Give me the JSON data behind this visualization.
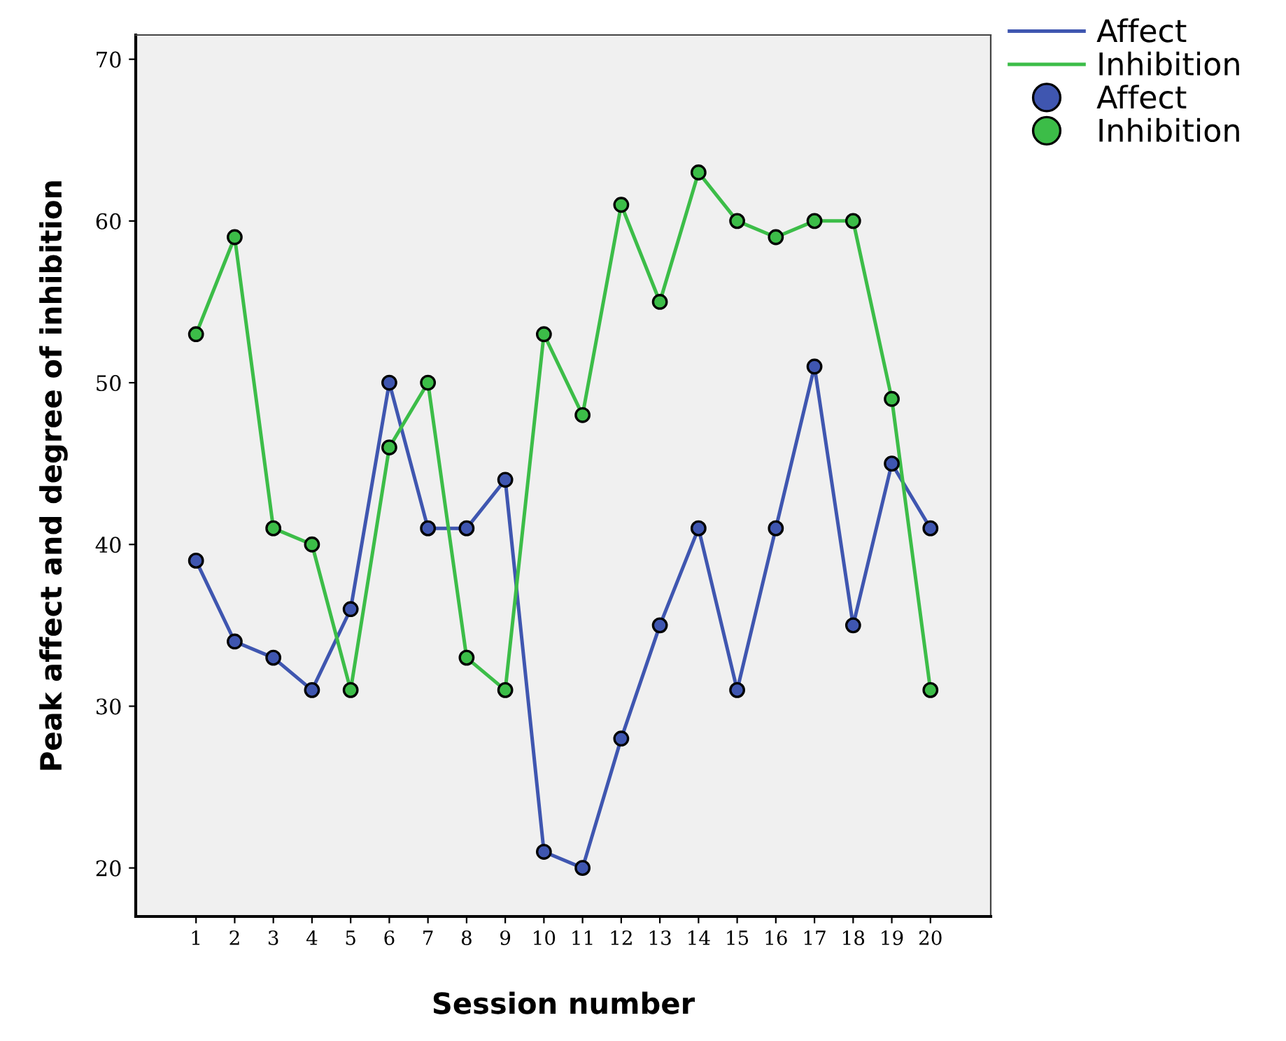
{
  "chart_data": {
    "type": "line",
    "xlabel": "Session number",
    "ylabel": "Peak affect and degree of inhibition",
    "categories": [
      "1",
      "2",
      "3",
      "4",
      "5",
      "6",
      "7",
      "8",
      "9",
      "10",
      "11",
      "12",
      "13",
      "14",
      "15",
      "16",
      "17",
      "18",
      "19",
      "20"
    ],
    "series": [
      {
        "name": "Affect",
        "color": "#3f56b0",
        "values": [
          39,
          34,
          33,
          31,
          36,
          50,
          41,
          41,
          44,
          21,
          20,
          28,
          35,
          41,
          31,
          41,
          51,
          35,
          45,
          41
        ]
      },
      {
        "name": "Inhibition",
        "color": "#3cbd48",
        "values": [
          53,
          59,
          41,
          40,
          31,
          46,
          50,
          33,
          31,
          53,
          48,
          61,
          55,
          63,
          60,
          59,
          60,
          60,
          49,
          31
        ]
      }
    ],
    "ylim": [
      17,
      71.5
    ],
    "yticks": [
      20,
      30,
      40,
      50,
      60,
      70
    ],
    "grid": false,
    "legend": "right",
    "marker": "circle",
    "line_style": "solid"
  }
}
